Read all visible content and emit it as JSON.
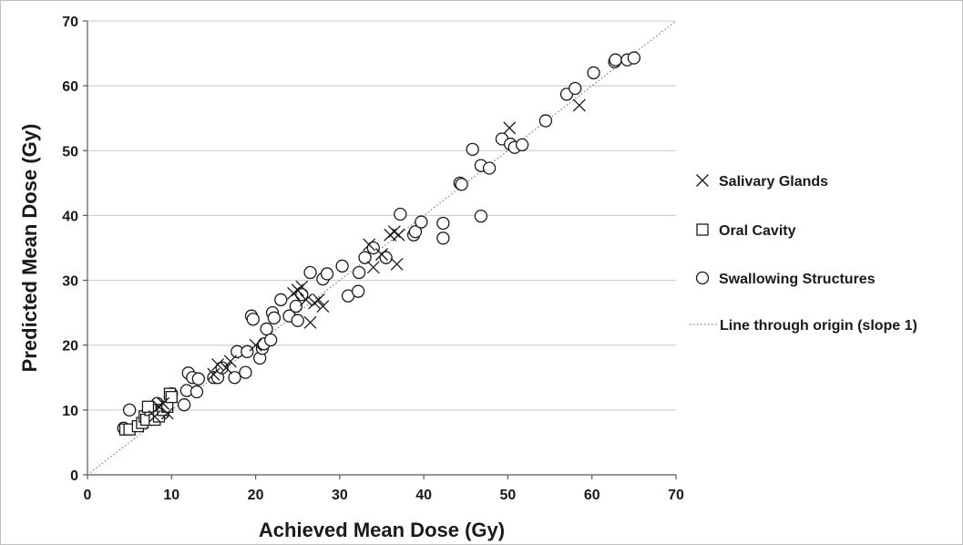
{
  "chart_data": {
    "type": "scatter",
    "xlabel": "Achieved Mean Dose (Gy)",
    "ylabel": "Predicted Mean Dose (Gy)",
    "xlim": [
      0,
      70
    ],
    "ylim": [
      0,
      70
    ],
    "xticks": [
      0,
      10,
      20,
      30,
      40,
      50,
      60,
      70
    ],
    "yticks": [
      0,
      10,
      20,
      30,
      40,
      50,
      60,
      70
    ],
    "grid": "horizontal",
    "legend_position": "right",
    "series": [
      {
        "name": "Salivary Glands",
        "marker": "x",
        "points": [
          [
            8.0,
            9.0
          ],
          [
            8.5,
            10.5
          ],
          [
            9.0,
            11.0
          ],
          [
            9.5,
            9.5
          ],
          [
            15.0,
            15.5
          ],
          [
            15.5,
            17.0
          ],
          [
            16.5,
            16.5
          ],
          [
            17.0,
            17.5
          ],
          [
            20.0,
            20.0
          ],
          [
            24.5,
            28.0
          ],
          [
            25.0,
            28.5
          ],
          [
            25.5,
            29.0
          ],
          [
            26.0,
            27.0
          ],
          [
            26.5,
            23.5
          ],
          [
            27.0,
            26.5
          ],
          [
            27.5,
            27.0
          ],
          [
            28.0,
            26.0
          ],
          [
            33.5,
            35.5
          ],
          [
            34.0,
            32.0
          ],
          [
            35.0,
            34.0
          ],
          [
            36.0,
            37.0
          ],
          [
            36.5,
            37.5
          ],
          [
            36.8,
            32.5
          ],
          [
            37.0,
            37.0
          ],
          [
            50.2,
            53.5
          ],
          [
            58.5,
            57.0
          ]
        ]
      },
      {
        "name": "Oral Cavity",
        "marker": "square",
        "points": [
          [
            4.5,
            7.0
          ],
          [
            5.0,
            7.0
          ],
          [
            6.0,
            7.5
          ],
          [
            6.5,
            8.0
          ],
          [
            6.8,
            9.0
          ],
          [
            7.0,
            8.5
          ],
          [
            7.5,
            10.0
          ],
          [
            8.0,
            8.5
          ],
          [
            8.5,
            9.0
          ],
          [
            9.0,
            10.0
          ],
          [
            9.5,
            10.5
          ],
          [
            9.8,
            12.5
          ],
          [
            10.0,
            12.0
          ],
          [
            7.2,
            10.5
          ]
        ]
      },
      {
        "name": "Swallowing Structures",
        "marker": "circle",
        "points": [
          [
            4.3,
            7.2
          ],
          [
            5.0,
            10.0
          ],
          [
            8.3,
            11.0
          ],
          [
            8.8,
            10.0
          ],
          [
            9.0,
            9.5
          ],
          [
            10.0,
            12.5
          ],
          [
            11.5,
            10.8
          ],
          [
            11.8,
            13.0
          ],
          [
            12.0,
            15.7
          ],
          [
            12.5,
            15.0
          ],
          [
            13.0,
            12.8
          ],
          [
            13.2,
            14.8
          ],
          [
            15.0,
            15.0
          ],
          [
            15.5,
            15.0
          ],
          [
            16.0,
            16.5
          ],
          [
            17.5,
            15.0
          ],
          [
            17.8,
            19.0
          ],
          [
            18.8,
            15.8
          ],
          [
            19.0,
            19.0
          ],
          [
            19.5,
            24.5
          ],
          [
            19.7,
            24.0
          ],
          [
            20.5,
            18.0
          ],
          [
            20.8,
            19.5
          ],
          [
            21.0,
            20.2
          ],
          [
            21.3,
            22.5
          ],
          [
            21.8,
            20.8
          ],
          [
            22.0,
            25.0
          ],
          [
            22.2,
            24.2
          ],
          [
            23.0,
            27.0
          ],
          [
            24.0,
            24.5
          ],
          [
            24.8,
            26.0
          ],
          [
            25.5,
            27.8
          ],
          [
            25.0,
            23.8
          ],
          [
            26.5,
            31.2
          ],
          [
            28.0,
            30.2
          ],
          [
            28.5,
            31.0
          ],
          [
            30.3,
            32.2
          ],
          [
            31.0,
            27.6
          ],
          [
            32.2,
            28.3
          ],
          [
            32.3,
            31.2
          ],
          [
            33.0,
            33.5
          ],
          [
            34.0,
            35.0
          ],
          [
            35.5,
            33.5
          ],
          [
            37.2,
            40.2
          ],
          [
            38.8,
            37.0
          ],
          [
            39.0,
            37.5
          ],
          [
            39.7,
            39.0
          ],
          [
            42.3,
            38.8
          ],
          [
            42.3,
            36.5
          ],
          [
            44.3,
            45.0
          ],
          [
            44.5,
            44.8
          ],
          [
            45.8,
            50.2
          ],
          [
            46.8,
            39.9
          ],
          [
            46.8,
            47.7
          ],
          [
            47.8,
            47.3
          ],
          [
            49.3,
            51.8
          ],
          [
            50.3,
            51.0
          ],
          [
            50.8,
            50.5
          ],
          [
            51.7,
            50.9
          ],
          [
            54.5,
            54.6
          ],
          [
            57.0,
            58.7
          ],
          [
            58.0,
            59.6
          ],
          [
            60.2,
            62.0
          ],
          [
            62.7,
            63.7
          ],
          [
            62.8,
            64.0
          ],
          [
            64.2,
            64.0
          ],
          [
            65.0,
            64.3
          ]
        ]
      },
      {
        "name": "Line through origin (slope 1)",
        "marker": "dotted-line",
        "points": [
          [
            0,
            0
          ],
          [
            70,
            70
          ]
        ]
      }
    ]
  }
}
